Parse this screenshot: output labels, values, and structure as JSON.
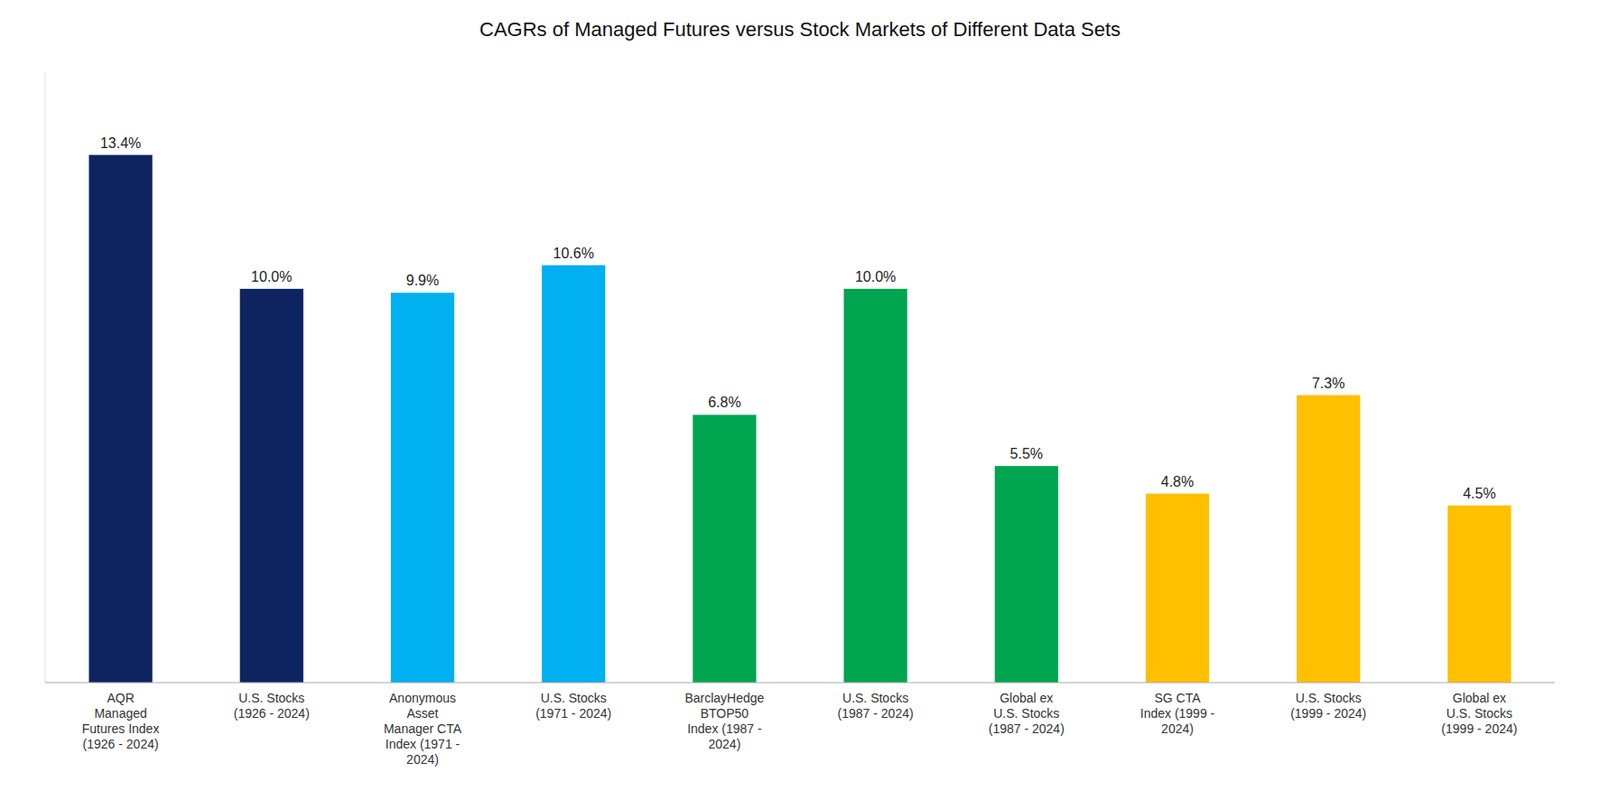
{
  "chart_data": {
    "type": "bar",
    "title": "CAGRs of Managed Futures versus Stock Markets of Different Data Sets",
    "categories": [
      "AQR\nManaged\nFutures Index\n(1926 - 2024)",
      "U.S. Stocks\n(1926 - 2024)",
      "Anonymous\nAsset\nManager CTA\nIndex (1971 -\n2024)",
      "U.S. Stocks\n(1971 - 2024)",
      "BarclayHedge\nBTOP50\nIndex (1987 -\n2024)",
      "U.S. Stocks\n(1987 - 2024)",
      "Global ex\nU.S. Stocks\n(1987 - 2024)",
      "SG CTA\nIndex (1999 -\n2024)",
      "U.S. Stocks\n(1999 - 2024)",
      "Global ex\nU.S. Stocks\n(1999 - 2024)"
    ],
    "values": [
      13.4,
      10.0,
      9.9,
      10.6,
      6.8,
      10.0,
      5.5,
      4.8,
      7.3,
      4.5
    ],
    "value_labels": [
      "13.4%",
      "10.0%",
      "9.9%",
      "10.6%",
      "6.8%",
      "10.0%",
      "5.5%",
      "4.8%",
      "7.3%",
      "4.5%"
    ],
    "colors": [
      "#0d2461",
      "#0d2461",
      "#00b0f0",
      "#00b0f0",
      "#00a550",
      "#00a550",
      "#00a550",
      "#ffc000",
      "#ffc000",
      "#ffc000"
    ],
    "ylim": [
      0,
      15.5
    ],
    "data_labels": true,
    "tick_labels": "x",
    "grid": false
  }
}
